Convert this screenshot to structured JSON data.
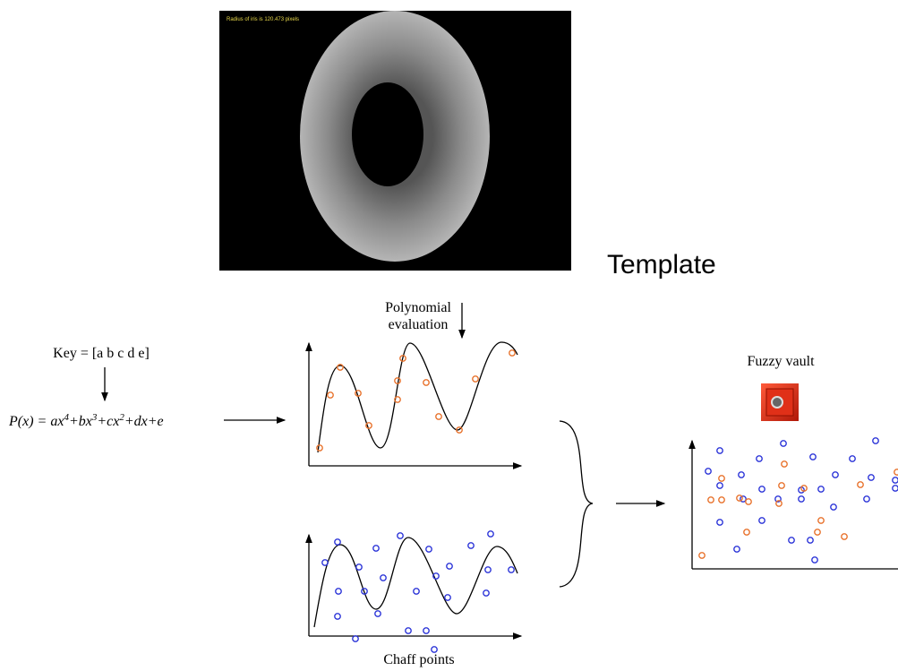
{
  "iris_caption": "Radius of iris is 120.473 pixels",
  "template_label": "Template",
  "evaluation_label": {
    "lines": [
      "Polynomial",
      "evaluation"
    ]
  },
  "key_label": "Key = [a b c d e]",
  "equation": {
    "parts": [
      "P(x)",
      " = ax",
      "4",
      "+bx",
      "3",
      "+cx",
      "2",
      "+dx+e"
    ]
  },
  "vault_label": "Fuzzy vault",
  "chaff_label": "Chaff points"
}
